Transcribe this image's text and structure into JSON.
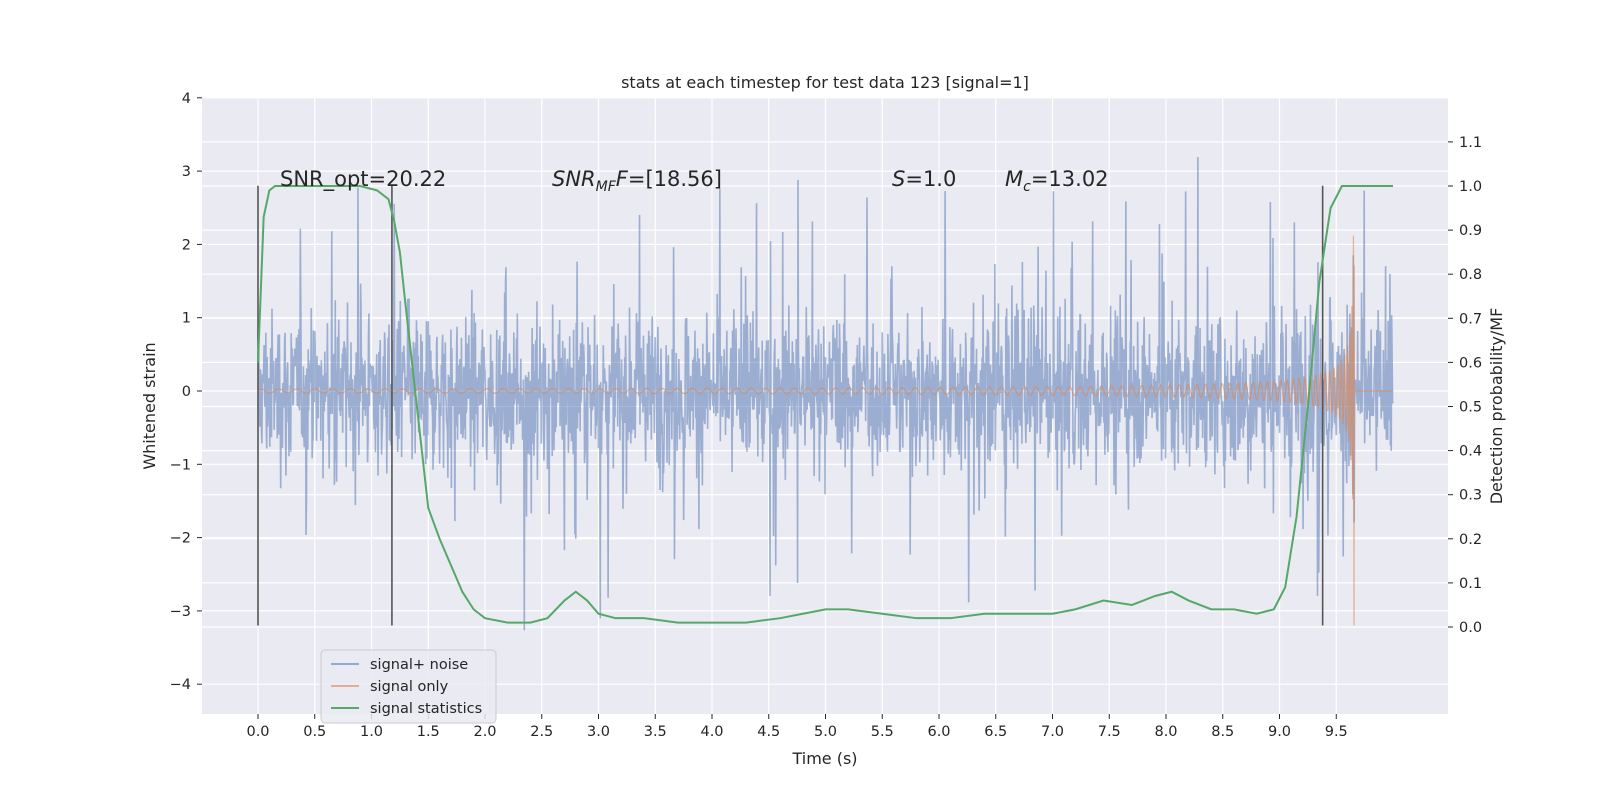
{
  "chart_data": {
    "type": "line",
    "title": "stats at each timestep for test data 123 [signal=1]",
    "xlabel": "Time (s)",
    "ylabel": "Whitened strain",
    "y2label": "Detection probability/MF",
    "xlim": [
      -0.5,
      10.5
    ],
    "ylim": [
      -4.4,
      4.0
    ],
    "y2lim": [
      -0.18,
      1.215
    ],
    "grid": true,
    "legend_position": "lower-left",
    "x_ticks": [
      "0.0",
      "0.5",
      "1.0",
      "1.5",
      "2.0",
      "2.5",
      "3.0",
      "3.5",
      "4.0",
      "4.5",
      "5.0",
      "5.5",
      "6.0",
      "6.5",
      "7.0",
      "7.5",
      "8.0",
      "8.5",
      "9.0",
      "9.5"
    ],
    "y_ticks": [
      "4",
      "3",
      "2",
      "1",
      "0",
      "−1",
      "−2",
      "−3",
      "−4"
    ],
    "y2_ticks": [
      "1.1",
      "1.0",
      "0.9",
      "0.8",
      "0.7",
      "0.6",
      "0.5",
      "0.4",
      "0.3",
      "0.2",
      "0.1",
      "0.0"
    ],
    "series": [
      {
        "name": "signal+ noise",
        "color": "#4c72b0",
        "description_values": "noise band approx within [-2, 2] with spikes to ±3.6, x from 0.0 to 10.0"
      },
      {
        "name": "signal only",
        "color": "#dd8452",
        "description_values": "chirp: ~0 until 5.0 s, amplitude grows to ~±3 at 9.6 s, then 0"
      },
      {
        "name": "signal statistics",
        "color": "#55a868",
        "x": [
          0.0,
          0.05,
          0.1,
          0.15,
          0.3,
          0.5,
          0.7,
          0.9,
          1.05,
          1.15,
          1.2,
          1.25,
          1.3,
          1.4,
          1.5,
          1.6,
          1.7,
          1.8,
          1.9,
          2.0,
          2.2,
          2.4,
          2.55,
          2.7,
          2.8,
          2.9,
          3.0,
          3.15,
          3.4,
          3.7,
          4.0,
          4.3,
          4.6,
          4.8,
          5.0,
          5.2,
          5.5,
          5.8,
          6.1,
          6.4,
          6.7,
          7.0,
          7.2,
          7.45,
          7.7,
          7.9,
          8.05,
          8.2,
          8.4,
          8.6,
          8.8,
          8.95,
          9.05,
          9.15,
          9.25,
          9.35,
          9.45,
          9.55,
          9.65,
          10.0
        ],
        "values": [
          0.6,
          0.93,
          0.99,
          1.0,
          1.0,
          1.0,
          1.0,
          1.0,
          0.99,
          0.97,
          0.92,
          0.85,
          0.73,
          0.5,
          0.27,
          0.2,
          0.14,
          0.08,
          0.04,
          0.02,
          0.01,
          0.01,
          0.02,
          0.06,
          0.08,
          0.06,
          0.03,
          0.02,
          0.02,
          0.01,
          0.01,
          0.01,
          0.02,
          0.03,
          0.04,
          0.04,
          0.03,
          0.02,
          0.02,
          0.03,
          0.03,
          0.03,
          0.04,
          0.06,
          0.05,
          0.07,
          0.08,
          0.06,
          0.04,
          0.04,
          0.03,
          0.04,
          0.09,
          0.25,
          0.5,
          0.78,
          0.95,
          1.0,
          1.0,
          1.0
        ]
      }
    ],
    "vlines_x": [
      0.0,
      1.18,
      9.38
    ],
    "annotations": {
      "snr_opt": "SNR_opt=20.22",
      "snr_mf_base": "SNR",
      "snr_mf_sub": "MF",
      "snr_mf_rest": "=[18.56]",
      "s_base": "S",
      "s_rest": "=1.0",
      "mc_base": "M",
      "mc_sub": "c",
      "mc_rest": "=13.02"
    }
  }
}
